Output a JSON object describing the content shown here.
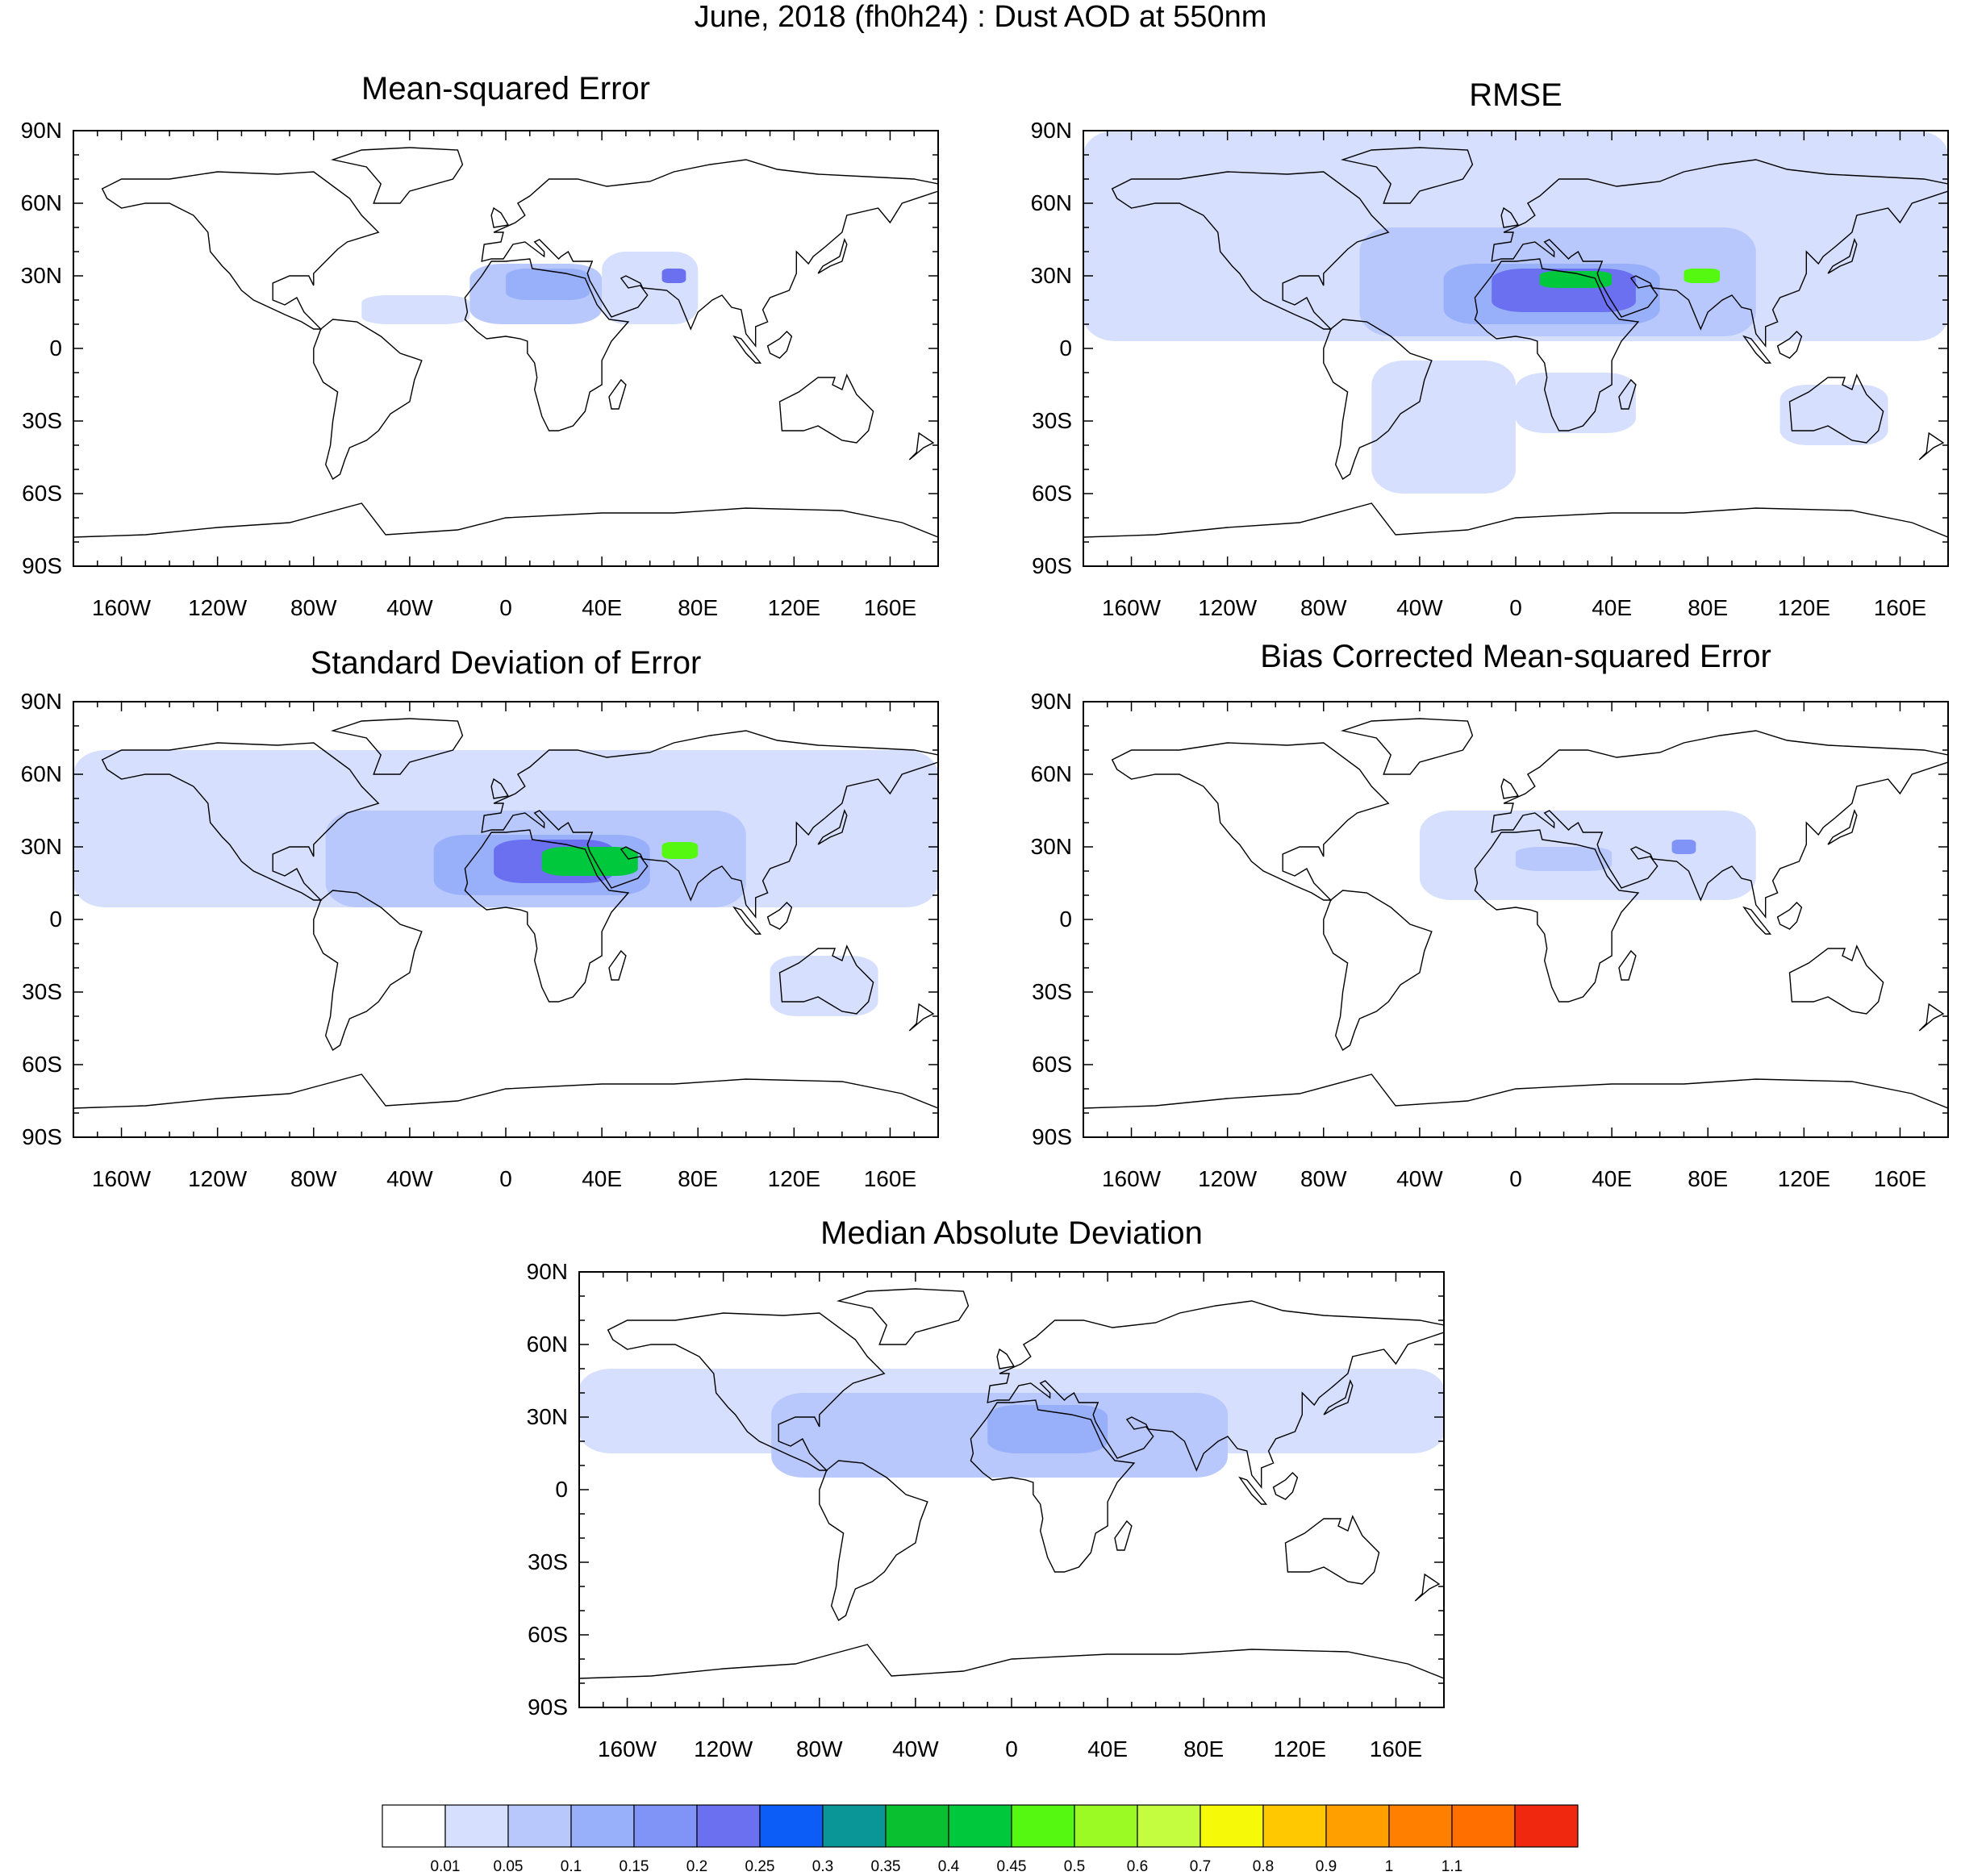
{
  "figure_title": "June, 2018 (fh0h24) : Dust AOD at 550nm",
  "colors": {
    "background": "#ffffff",
    "coastline": "#000000"
  },
  "icons": [],
  "chart_data": [
    {
      "type": "heatmap",
      "title": "Mean-squared Error",
      "map_projection": "cylindrical-equidistant",
      "x_range": [
        -180,
        180
      ],
      "y_range": [
        -90,
        90
      ],
      "y_ticks": [
        "90N",
        "60N",
        "30N",
        "0",
        "30S",
        "60S",
        "90S"
      ],
      "x_ticks": [
        "160W",
        "120W",
        "80W",
        "40W",
        "0",
        "40E",
        "80E",
        "120E",
        "160E"
      ],
      "dust_regions": [
        {
          "lon": [
            -15,
            40
          ],
          "lat": [
            10,
            35
          ],
          "level": 0.05
        },
        {
          "lon": [
            -60,
            -15
          ],
          "lat": [
            10,
            22
          ],
          "level": 0.01
        },
        {
          "lon": [
            40,
            80
          ],
          "lat": [
            10,
            40
          ],
          "level": 0.01
        },
        {
          "lon": [
            0,
            35
          ],
          "lat": [
            20,
            33
          ],
          "level": 0.1
        },
        {
          "lon": [
            65,
            75
          ],
          "lat": [
            27,
            33
          ],
          "level": 0.2
        }
      ]
    },
    {
      "type": "heatmap",
      "title": "RMSE",
      "map_projection": "cylindrical-equidistant",
      "x_range": [
        -180,
        180
      ],
      "y_range": [
        -90,
        90
      ],
      "y_ticks": [
        "90N",
        "60N",
        "30N",
        "0",
        "30S",
        "60S",
        "90S"
      ],
      "x_ticks": [
        "160W",
        "120W",
        "80W",
        "40W",
        "0",
        "40E",
        "80E",
        "120E",
        "160E"
      ],
      "dust_regions": [
        {
          "lon": [
            -180,
            180
          ],
          "lat": [
            3,
            90
          ],
          "level": 0.01
        },
        {
          "lon": [
            -60,
            0
          ],
          "lat": [
            -60,
            -5
          ],
          "level": 0.01
        },
        {
          "lon": [
            0,
            50
          ],
          "lat": [
            -35,
            -10
          ],
          "level": 0.01
        },
        {
          "lon": [
            110,
            155
          ],
          "lat": [
            -40,
            -15
          ],
          "level": 0.01
        },
        {
          "lon": [
            -65,
            100
          ],
          "lat": [
            5,
            50
          ],
          "level": 0.05
        },
        {
          "lon": [
            -30,
            60
          ],
          "lat": [
            10,
            35
          ],
          "level": 0.1
        },
        {
          "lon": [
            -10,
            50
          ],
          "lat": [
            15,
            33
          ],
          "level": 0.2
        },
        {
          "lon": [
            10,
            40
          ],
          "lat": [
            25,
            32
          ],
          "level": 0.4
        },
        {
          "lon": [
            70,
            85
          ],
          "lat": [
            27,
            33
          ],
          "level": 0.45
        }
      ]
    },
    {
      "type": "heatmap",
      "title": "Standard Deviation of Error",
      "map_projection": "cylindrical-equidistant",
      "x_range": [
        -180,
        180
      ],
      "y_range": [
        -90,
        90
      ],
      "y_ticks": [
        "90N",
        "60N",
        "30N",
        "0",
        "30S",
        "60S",
        "90S"
      ],
      "x_ticks": [
        "160W",
        "120W",
        "80W",
        "40W",
        "0",
        "40E",
        "80E",
        "120E",
        "160E"
      ],
      "dust_regions": [
        {
          "lon": [
            -180,
            180
          ],
          "lat": [
            5,
            70
          ],
          "level": 0.01
        },
        {
          "lon": [
            110,
            155
          ],
          "lat": [
            -40,
            -15
          ],
          "level": 0.01
        },
        {
          "lon": [
            -75,
            100
          ],
          "lat": [
            5,
            45
          ],
          "level": 0.05
        },
        {
          "lon": [
            -30,
            60
          ],
          "lat": [
            10,
            35
          ],
          "level": 0.1
        },
        {
          "lon": [
            -5,
            45
          ],
          "lat": [
            15,
            33
          ],
          "level": 0.2
        },
        {
          "lon": [
            15,
            55
          ],
          "lat": [
            18,
            30
          ],
          "level": 0.4
        },
        {
          "lon": [
            65,
            80
          ],
          "lat": [
            25,
            32
          ],
          "level": 0.45
        }
      ]
    },
    {
      "type": "heatmap",
      "title": "Bias Corrected Mean-squared Error",
      "map_projection": "cylindrical-equidistant",
      "x_range": [
        -180,
        180
      ],
      "y_range": [
        -90,
        90
      ],
      "y_ticks": [
        "90N",
        "60N",
        "30N",
        "0",
        "30S",
        "60S",
        "90S"
      ],
      "x_ticks": [
        "160W",
        "120W",
        "80W",
        "40W",
        "0",
        "40E",
        "80E",
        "120E",
        "160E"
      ],
      "dust_regions": [
        {
          "lon": [
            -40,
            100
          ],
          "lat": [
            8,
            45
          ],
          "level": 0.01
        },
        {
          "lon": [
            0,
            40
          ],
          "lat": [
            20,
            30
          ],
          "level": 0.05
        },
        {
          "lon": [
            65,
            75
          ],
          "lat": [
            27,
            33
          ],
          "level": 0.15
        }
      ]
    },
    {
      "type": "heatmap",
      "title": "Median Absolute Deviation",
      "map_projection": "cylindrical-equidistant",
      "x_range": [
        -180,
        180
      ],
      "y_range": [
        -90,
        90
      ],
      "y_ticks": [
        "90N",
        "60N",
        "30N",
        "0",
        "30S",
        "60S",
        "90S"
      ],
      "x_ticks": [
        "160W",
        "120W",
        "80W",
        "40W",
        "0",
        "40E",
        "80E",
        "120E",
        "160E"
      ],
      "dust_regions": [
        {
          "lon": [
            -180,
            180
          ],
          "lat": [
            15,
            50
          ],
          "level": 0.01
        },
        {
          "lon": [
            -100,
            90
          ],
          "lat": [
            5,
            40
          ],
          "level": 0.05
        },
        {
          "lon": [
            -10,
            40
          ],
          "lat": [
            15,
            35
          ],
          "level": 0.1
        }
      ]
    }
  ],
  "colorbar": {
    "colors": [
      "#ffffff",
      "#d6dffd",
      "#b8c8fc",
      "#98affa",
      "#8094f7",
      "#6a70f0",
      "#0c5cf7",
      "#0a9696",
      "#08c030",
      "#00c83c",
      "#54f810",
      "#9cfa24",
      "#c4fc40",
      "#f6fa08",
      "#ffc800",
      "#ffa000",
      "#ff8000",
      "#ff6f00",
      "#f02810"
    ],
    "labels": [
      "0.01",
      "0.05",
      "0.1",
      "0.15",
      "0.2",
      "0.25",
      "0.3",
      "0.35",
      "0.4",
      "0.45",
      "0.5",
      "0.6",
      "0.7",
      "0.8",
      "0.9",
      "1",
      "1.1"
    ]
  }
}
